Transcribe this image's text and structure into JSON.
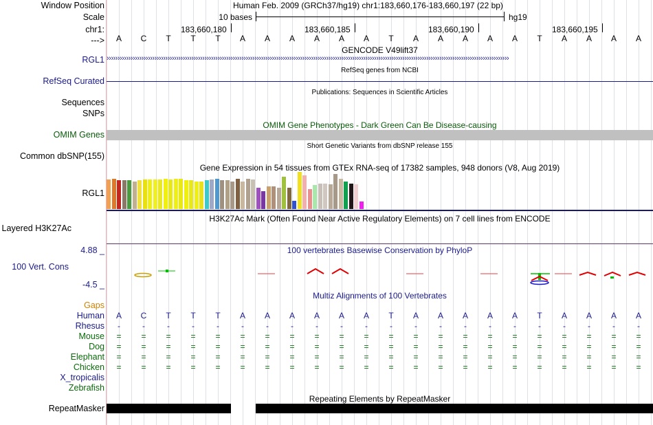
{
  "labels": {
    "window_position": "Window Position",
    "scale": "Scale",
    "chrom": "chr1:",
    "strand": "--->",
    "gene": "RGL1",
    "refseq": "RefSeq Curated",
    "sequences": "Sequences",
    "snps": "SNPs",
    "omim": "OMIM Genes",
    "dbsnp": "Common dbSNP(155)",
    "gtex": "RGL1",
    "h3k27ac": "Layered H3K27Ac",
    "cons_max": "4.88 _",
    "cons": "100 Vert. Cons",
    "cons_min": "-4.5 _",
    "gaps": "Gaps",
    "species": [
      "Human",
      "Rhesus",
      "Mouse",
      "Dog",
      "Elephant",
      "Chicken",
      "X_tropicalis",
      "Zebrafish"
    ],
    "repeatmasker": "RepeatMasker"
  },
  "header": {
    "position": "Human Feb. 2009 (GRCh37/hg19)   chr1:183,660,176-183,660,197 (22 bp)",
    "scale_bases": "10 bases",
    "assembly": "hg19",
    "coords": [
      "183,660,180",
      "183,660,185",
      "183,660,190",
      "183,660,195"
    ]
  },
  "bases": [
    "A",
    "C",
    "T",
    "T",
    "T",
    "A",
    "A",
    "A",
    "A",
    "A",
    "A",
    "T",
    "A",
    "A",
    "A",
    "A",
    "A",
    "T",
    "A",
    "A",
    "A",
    "A"
  ],
  "rhesus": [
    "-",
    "-",
    "-",
    "-",
    "-",
    "-",
    "-",
    "-",
    "-",
    "-",
    "-",
    "-",
    "-",
    "-",
    "-",
    "-",
    "-",
    "-",
    "-",
    "-",
    "-",
    "-"
  ],
  "mouse": [
    "=",
    "=",
    "=",
    "=",
    "=",
    "=",
    "=",
    "=",
    "=",
    "=",
    "=",
    "=",
    "=",
    "=",
    "=",
    "=",
    "=",
    "=",
    "=",
    "=",
    "=",
    "="
  ],
  "dog": [
    "=",
    "=",
    "=",
    "=",
    "=",
    "=",
    "=",
    "=",
    "=",
    "=",
    "=",
    "=",
    "=",
    "=",
    "=",
    "=",
    "=",
    "=",
    "=",
    "=",
    "=",
    "="
  ],
  "elephant": [
    "=",
    "=",
    "=",
    "=",
    "=",
    "=",
    "=",
    "=",
    "=",
    "=",
    "=",
    "=",
    "=",
    "=",
    "=",
    "=",
    "=",
    "=",
    "=",
    "=",
    "=",
    "="
  ],
  "chicken": [
    "=",
    "=",
    "=",
    "=",
    "=",
    "=",
    "=",
    "=",
    "=",
    "=",
    "=",
    "=",
    "=",
    "=",
    "=",
    "=",
    "=",
    "=",
    "=",
    "=",
    "=",
    "="
  ],
  "tracks": {
    "gencode": "GENCODE V49lift37",
    "refseq": "RefSeq genes from NCBI",
    "publications": "Publications: Sequences in Scientific Articles",
    "omim": "OMIM Gene Phenotypes - Dark Green Can Be Disease-causing",
    "dbsnp": "Short Genetic Variants from dbSNP release 155",
    "gtex": "Gene Expression in 54 tissues from GTEx RNA-seq of 17382 samples, 948 donors (V8, Aug 2019)",
    "h3k27ac": "H3K27Ac Mark (Often Found Near Active Regulatory Elements) on 7 cell lines from ENCODE",
    "phylop": "100 vertebrates Basewise Conservation by PhyloP",
    "multiz": "Multiz Alignments of 100 Vertebrates",
    "repeat": "Repeating Elements by RepeatMasker"
  },
  "gene_arrows": "›››››››››››››››››››››››››››››››››››››››››››››››››››››››››››››››››››››››››››››››››››››››››››››››››››››››››››››››››››››››››››››››››››››››››››››››››››››››››››››››››››››››››››››››››››››››››",
  "gtex_data": [
    {
      "v": 0.79,
      "c": "#f0a050"
    },
    {
      "v": 0.82,
      "c": "#e07828"
    },
    {
      "v": 0.77,
      "c": "#c02820"
    },
    {
      "v": 0.77,
      "c": "#8a7868"
    },
    {
      "v": 0.77,
      "c": "#4a9a40"
    },
    {
      "v": 0.74,
      "c": "#c0b090"
    },
    {
      "v": 0.77,
      "c": "#f0e040"
    },
    {
      "v": 0.79,
      "c": "#e8e010"
    },
    {
      "v": 0.79,
      "c": "#f0f010"
    },
    {
      "v": 0.79,
      "c": "#f0f020"
    },
    {
      "v": 0.79,
      "c": "#e8e828"
    },
    {
      "v": 0.82,
      "c": "#f0f010"
    },
    {
      "v": 0.8,
      "c": "#e8e818"
    },
    {
      "v": 0.82,
      "c": "#f0f010"
    },
    {
      "v": 0.82,
      "c": "#e8e818"
    },
    {
      "v": 0.77,
      "c": "#f0f010"
    },
    {
      "v": 0.77,
      "c": "#e8e818"
    },
    {
      "v": 0.74,
      "c": "#f0f010"
    },
    {
      "v": 0.74,
      "c": "#e8e020"
    },
    {
      "v": 0.77,
      "c": "#40c8c8"
    },
    {
      "v": 0.8,
      "c": "#a0a8c8"
    },
    {
      "v": 0.82,
      "c": "#5098d0"
    },
    {
      "v": 0.77,
      "c": "#a09080"
    },
    {
      "v": 0.77,
      "c": "#b0a088"
    },
    {
      "v": 0.74,
      "c": "#a89888"
    },
    {
      "v": 0.82,
      "c": "#806040"
    },
    {
      "v": 0.74,
      "c": "#c8b8a0"
    },
    {
      "v": 0.82,
      "c": "#b0a090"
    },
    {
      "v": 0.8,
      "c": "#c8c0b0"
    },
    {
      "v": 0.57,
      "c": "#a050c0"
    },
    {
      "v": 0.49,
      "c": "#7838a0"
    },
    {
      "v": 0.62,
      "c": "#c8a070"
    },
    {
      "v": 0.62,
      "c": "#b09078"
    },
    {
      "v": 0.57,
      "c": "#b8a898"
    },
    {
      "v": 0.87,
      "c": "#a0c040"
    },
    {
      "v": 0.57,
      "c": "#806840"
    },
    {
      "v": 0.23,
      "c": "#3050d0"
    },
    {
      "v": 1.0,
      "c": "#f0e020"
    },
    {
      "v": 0.9,
      "c": "#f0b0b0"
    },
    {
      "v": 0.54,
      "c": "#e89090"
    },
    {
      "v": 0.64,
      "c": "#a8e8a8"
    },
    {
      "v": 0.69,
      "c": "#c8c0b8"
    },
    {
      "v": 0.69,
      "c": "#d0c8c0"
    },
    {
      "v": 0.67,
      "c": "#b8a898"
    },
    {
      "v": 0.95,
      "c": "#a89888"
    },
    {
      "v": 0.82,
      "c": "#c8b8a0"
    },
    {
      "v": 0.74,
      "c": "#10a050"
    },
    {
      "v": 0.69,
      "c": "#201818"
    },
    {
      "v": 0.67,
      "c": "#f0d0d0"
    },
    {
      "v": 0.21,
      "c": "#f020f0"
    }
  ]
}
